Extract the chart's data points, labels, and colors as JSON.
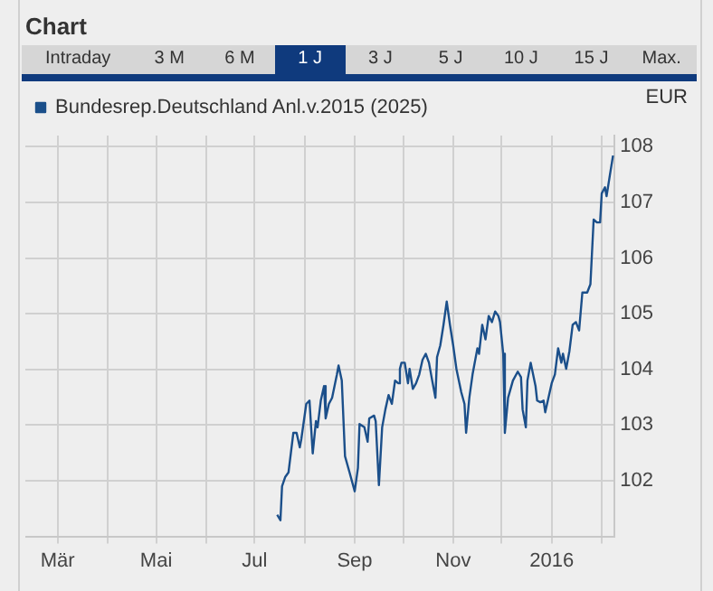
{
  "chart_data": {
    "type": "line",
    "title": "Chart",
    "ylabel": "EUR",
    "annotations": [
      "Intraday",
      "3 M",
      "6 M",
      "1 J",
      "3 J",
      "5 J",
      "10 J",
      "15 J",
      "Max."
    ],
    "legend": "top left",
    "grid": true,
    "marker": "none",
    "line_style": "solid",
    "xlim": [
      "2015-02-09",
      "2016-02-09"
    ],
    "xticks": [
      {
        "value": "2015-03-01",
        "label": "Mär"
      },
      {
        "value": "2015-04-01",
        "label": null
      },
      {
        "value": "2015-05-01",
        "label": "Mai"
      },
      {
        "value": "2015-06-01",
        "label": null
      },
      {
        "value": "2015-07-01",
        "label": "Jul"
      },
      {
        "value": "2015-08-01",
        "label": null
      },
      {
        "value": "2015-09-01",
        "label": "Sep"
      },
      {
        "value": "2015-10-01",
        "label": null
      },
      {
        "value": "2015-11-01",
        "label": "Nov"
      },
      {
        "value": "2015-12-01",
        "label": null
      },
      {
        "value": "2016-01-01",
        "label": "2016"
      },
      {
        "value": "2016-02-01",
        "label": null
      }
    ],
    "ylim": [
      101,
      108.2
    ],
    "yticks": [
      102,
      103,
      104,
      105,
      106,
      107,
      108
    ],
    "x": [
      "2015-07-15",
      "2015-07-17",
      "2015-07-18",
      "2015-07-20",
      "2015-07-22",
      "2015-07-25",
      "2015-07-27",
      "2015-07-29",
      "2015-07-30",
      "2015-08-02",
      "2015-08-04",
      "2015-08-06",
      "2015-08-08",
      "2015-08-09",
      "2015-08-11",
      "2015-08-13",
      "2015-08-14",
      "2015-08-16",
      "2015-08-18",
      "2015-08-21",
      "2015-08-22",
      "2015-08-24",
      "2015-08-26",
      "2015-08-29",
      "2015-09-01",
      "2015-09-03",
      "2015-09-04",
      "2015-09-07",
      "2015-09-09",
      "2015-09-10",
      "2015-09-13",
      "2015-09-14",
      "2015-09-16",
      "2015-09-18",
      "2015-09-20",
      "2015-09-22",
      "2015-09-24",
      "2015-09-26",
      "2015-09-28",
      "2015-09-29",
      "2015-09-30",
      "2015-10-02",
      "2015-10-04",
      "2015-10-05",
      "2015-10-07",
      "2015-10-09",
      "2015-10-11",
      "2015-10-13",
      "2015-10-15",
      "2015-10-17",
      "2015-10-19",
      "2015-10-21",
      "2015-10-22",
      "2015-10-24",
      "2015-10-26",
      "2015-10-28",
      "2015-10-30",
      "2015-11-01",
      "2015-11-03",
      "2015-11-06",
      "2015-11-08",
      "2015-11-09",
      "2015-11-11",
      "2015-11-13",
      "2015-11-16",
      "2015-11-17",
      "2015-11-19",
      "2015-11-21",
      "2015-11-23",
      "2015-11-25",
      "2015-11-27",
      "2015-11-29",
      "2015-11-30",
      "2015-12-02",
      "2015-12-03",
      "2015-12-05",
      "2015-12-08",
      "2015-12-11",
      "2015-12-13",
      "2015-12-14",
      "2015-12-16",
      "2015-12-17",
      "2015-12-19",
      "2015-12-22",
      "2015-12-23",
      "2015-12-25",
      "2015-12-27",
      "2015-12-28",
      "2015-12-30",
      "2016-01-01",
      "2016-01-03",
      "2016-01-05",
      "2016-01-07",
      "2016-01-08",
      "2016-01-10",
      "2016-01-12",
      "2016-01-14",
      "2016-01-16",
      "2016-01-18",
      "2016-01-20",
      "2016-01-23",
      "2016-01-25",
      "2016-01-27",
      "2016-01-29",
      "2016-01-31",
      "2016-02-01",
      "2016-02-03",
      "2016-02-04",
      "2016-02-06",
      "2016-02-08"
    ],
    "series": [
      {
        "name": "Bundesrep.Deutschland Anl.v.2015 (2025)",
        "color": "#1b4f8a",
        "values": [
          101.39,
          101.29,
          101.9,
          102.07,
          102.15,
          102.86,
          102.86,
          102.6,
          102.76,
          103.38,
          103.44,
          102.49,
          103.07,
          102.96,
          103.44,
          103.7,
          103.12,
          103.38,
          103.49,
          103.91,
          104.07,
          103.8,
          102.44,
          102.13,
          101.81,
          102.23,
          103.02,
          102.96,
          102.7,
          103.12,
          103.17,
          103.07,
          101.92,
          102.96,
          103.28,
          103.54,
          103.38,
          103.8,
          103.75,
          104.01,
          104.12,
          104.12,
          103.75,
          104.01,
          103.65,
          103.75,
          103.91,
          104.17,
          104.28,
          104.12,
          103.8,
          103.49,
          104.22,
          104.43,
          104.8,
          105.22,
          104.8,
          104.43,
          104.01,
          103.59,
          103.38,
          102.86,
          103.49,
          103.91,
          104.38,
          104.28,
          104.8,
          104.54,
          104.96,
          104.85,
          105.04,
          104.96,
          104.85,
          104.28,
          102.86,
          103.49,
          103.8,
          103.96,
          103.86,
          103.28,
          102.96,
          103.8,
          104.12,
          103.7,
          103.44,
          103.41,
          103.44,
          103.23,
          103.49,
          103.75,
          103.91,
          104.38,
          104.12,
          104.28,
          104.01,
          104.33,
          104.8,
          104.85,
          104.7,
          105.38,
          105.38,
          105.53,
          106.69,
          106.64,
          106.64,
          107.16,
          107.27,
          107.11,
          107.48,
          107.84
        ]
      }
    ]
  }
}
